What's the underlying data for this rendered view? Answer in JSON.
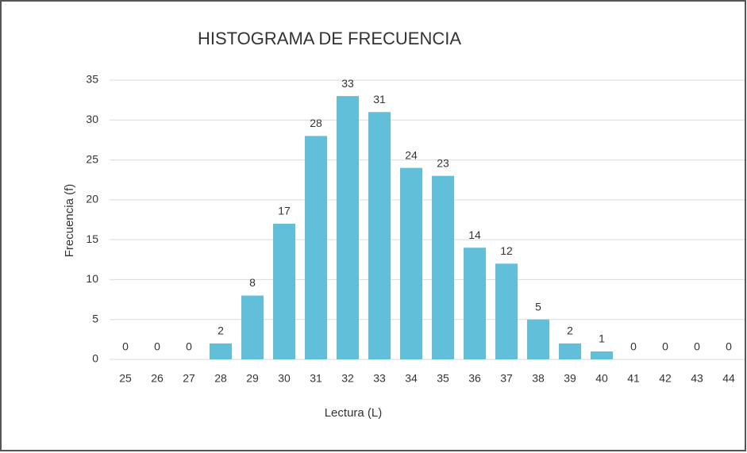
{
  "chart_data": {
    "type": "bar",
    "title": "HISTOGRAMA DE FRECUENCIA",
    "x_label": "Lectura (L)",
    "y_label": "Frecuencia (f)",
    "categories": [
      "25",
      "26",
      "27",
      "28",
      "29",
      "30",
      "31",
      "32",
      "33",
      "34",
      "35",
      "36",
      "37",
      "38",
      "39",
      "40",
      "41",
      "42",
      "43",
      "44"
    ],
    "values": [
      0,
      0,
      0,
      2,
      8,
      17,
      28,
      33,
      31,
      24,
      23,
      14,
      12,
      5,
      2,
      1,
      0,
      0,
      0,
      0
    ],
    "color": "#62bfd9",
    "ylim": [
      0,
      35
    ],
    "yticks": [
      0,
      5,
      10,
      15,
      20,
      25,
      30,
      35
    ],
    "grid": true,
    "data_labels": true
  }
}
